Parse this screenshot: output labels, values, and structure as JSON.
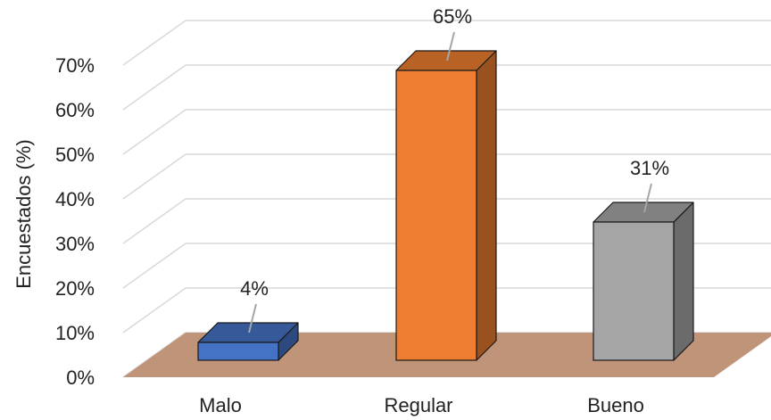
{
  "chart_data": {
    "type": "bar",
    "style": "3d-column",
    "title": "",
    "xlabel": "",
    "ylabel": "Encuestados (%)",
    "ylim": [
      0,
      70
    ],
    "yticks": [
      "0%",
      "10%",
      "20%",
      "30%",
      "40%",
      "50%",
      "60%",
      "70%"
    ],
    "categories": [
      "Malo",
      "Regular",
      "Bueno"
    ],
    "values": [
      4,
      65,
      31
    ],
    "data_labels": [
      "4%",
      "65%",
      "31%"
    ],
    "grid": true,
    "legend": "none",
    "colors": {
      "Malo": "#4472c4",
      "Regular": "#ed7d31",
      "Bueno": "#a5a5a5",
      "floor": "#c09478",
      "grid": "#d9d9d9"
    }
  }
}
